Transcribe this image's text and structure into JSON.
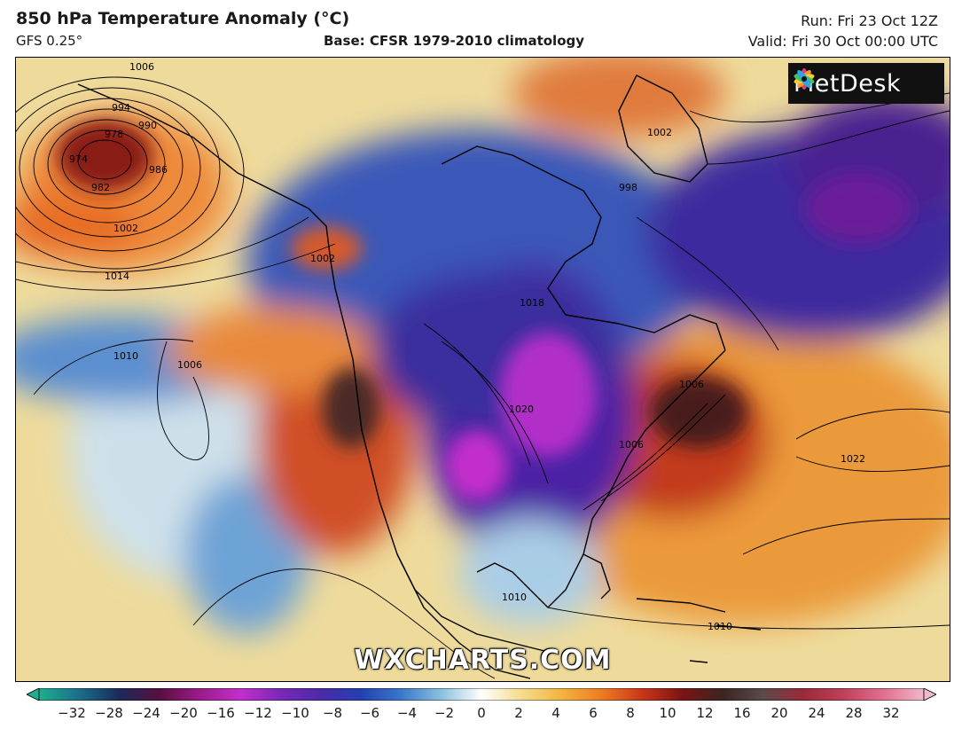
{
  "header": {
    "title": "850 hPa Temperature Anomaly (°C)",
    "model": "GFS 0.25°",
    "base": "Base: CFSR 1979-2010 climatology",
    "run": "Run: Fri 23 Oct 12Z",
    "valid": "Valid: Fri 30 Oct 00:00 UTC"
  },
  "logo": {
    "text": "MetDesk"
  },
  "watermark": "WXCHARTS.COM",
  "map": {
    "region": "North America and North Atlantic",
    "isobar_labels": [
      "994",
      "990",
      "986",
      "982",
      "978",
      "974",
      "1006",
      "1002",
      "1014",
      "1010",
      "1006",
      "1010",
      "1006",
      "998",
      "1002",
      "1018",
      "1020",
      "1006",
      "1022",
      "1010",
      "1002"
    ],
    "features": [
      {
        "name": "deep low over Gulf of Alaska",
        "center_hpa": 974,
        "anomaly": "warm"
      },
      {
        "name": "Arctic air outbreak over central North America",
        "anomaly": "very cold"
      },
      {
        "name": "warm anomaly over western North America",
        "anomaly": "very warm"
      },
      {
        "name": "warm anomaly off US East Coast",
        "anomaly": "very warm"
      }
    ]
  },
  "colorbar": {
    "ticks": [
      "−32",
      "−28",
      "−24",
      "−20",
      "−16",
      "−12",
      "−10",
      "−8",
      "−6",
      "−4",
      "−2",
      "0",
      "2",
      "4",
      "6",
      "8",
      "10",
      "12",
      "16",
      "20",
      "24",
      "28",
      "32"
    ],
    "colors": [
      "#1fae8e",
      "#1a6e8a",
      "#1b2a5a",
      "#5a0f3f",
      "#9a1c8a",
      "#c22fc9",
      "#7a28b8",
      "#4c2aa8",
      "#2340b0",
      "#3a78c8",
      "#8cc0e0",
      "#ffffff",
      "#f4dc8a",
      "#f2b340",
      "#ee7a22",
      "#c8361a",
      "#7a1414",
      "#3b2520",
      "#5a4a48",
      "#9a2a3a",
      "#c0405a",
      "#e07090",
      "#f0b8c8"
    ]
  }
}
